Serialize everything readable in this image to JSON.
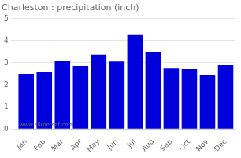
{
  "chart_data": {
    "type": "bar",
    "title": "Charleston : precipitation (inch)",
    "categories": [
      "Jan",
      "Feb",
      "Mar",
      "Apr",
      "May",
      "Jun",
      "Jul",
      "Aug",
      "Sep",
      "Oct",
      "Nov",
      "Dec"
    ],
    "values": [
      2.47,
      2.58,
      3.08,
      2.84,
      3.37,
      3.07,
      4.27,
      3.47,
      2.75,
      2.72,
      2.44,
      2.9
    ],
    "color": "#0000DD",
    "ylim": [
      0,
      5
    ],
    "yticks": [
      0,
      1,
      2,
      3,
      4,
      5
    ],
    "grid": true,
    "annotations": [
      "www.allmetsat.com"
    ]
  }
}
